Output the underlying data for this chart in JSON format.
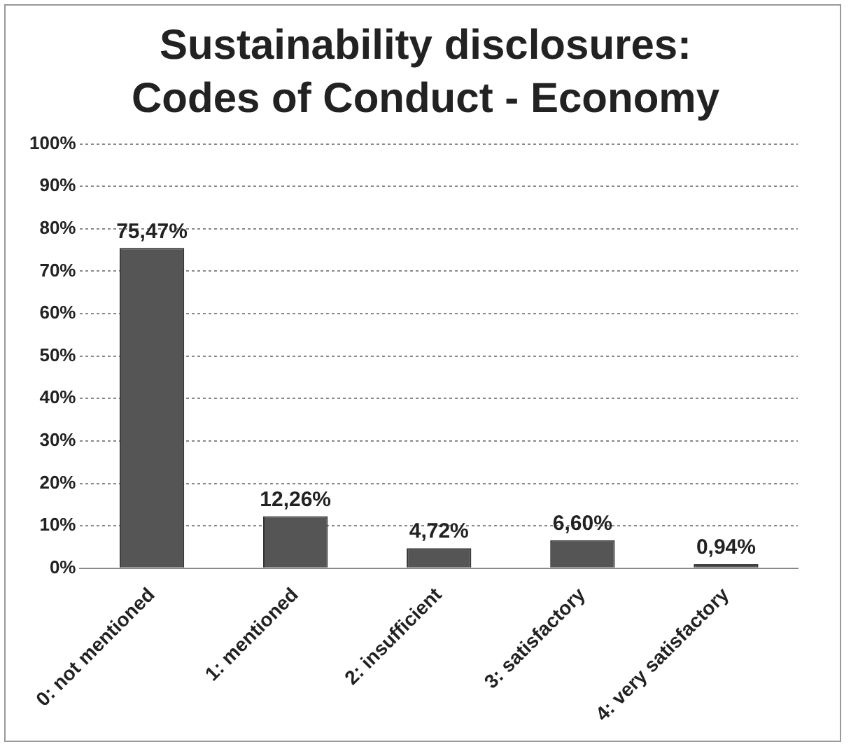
{
  "chart_data": {
    "type": "bar",
    "title": "Sustainability disclosures: Codes of Conduct - Economy",
    "categories": [
      "0: not mentioned",
      "1: mentioned",
      "2: insufficient",
      "3: satisfactory",
      "4: very satisfactory"
    ],
    "values": [
      75.47,
      12.26,
      4.72,
      6.6,
      0.94
    ],
    "value_labels": [
      "75,47%",
      "12,26%",
      "4,72%",
      "6,60%",
      "0,94%"
    ],
    "color": "#555555",
    "ylim": [
      0,
      100
    ],
    "yticks": [
      {
        "value": 0,
        "label": "0%"
      },
      {
        "value": 10,
        "label": "10%"
      },
      {
        "value": 20,
        "label": "20%"
      },
      {
        "value": 30,
        "label": "30%"
      },
      {
        "value": 40,
        "label": "40%"
      },
      {
        "value": 50,
        "label": "50%"
      },
      {
        "value": 60,
        "label": "60%"
      },
      {
        "value": 70,
        "label": "70%"
      },
      {
        "value": 80,
        "label": "80%"
      },
      {
        "value": 90,
        "label": "90%"
      },
      {
        "value": 100,
        "label": "100%"
      }
    ],
    "grid": "y"
  }
}
